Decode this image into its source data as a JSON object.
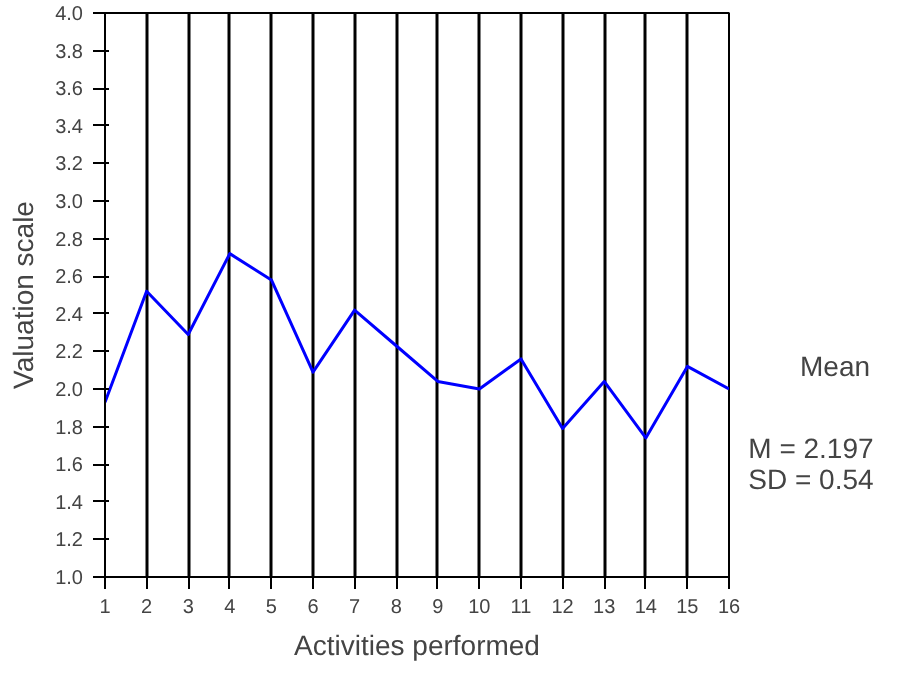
{
  "chart_data": {
    "type": "line",
    "xlabel": "Activities performed",
    "ylabel": "Valuation scale",
    "x": [
      1,
      2,
      3,
      4,
      5,
      6,
      7,
      8,
      9,
      10,
      11,
      12,
      13,
      14,
      15,
      16
    ],
    "series": [
      {
        "name": "Mean",
        "color": "#0000ff",
        "values": [
          1.93,
          2.52,
          2.29,
          2.72,
          2.58,
          2.09,
          2.42,
          2.23,
          2.04,
          2.0,
          2.16,
          1.79,
          2.04,
          1.74,
          2.12,
          2.0
        ]
      }
    ],
    "xlim": [
      1,
      16
    ],
    "xticks": [
      1,
      2,
      3,
      4,
      5,
      6,
      7,
      8,
      9,
      10,
      11,
      12,
      13,
      14,
      15,
      16
    ],
    "ylim": [
      1,
      4
    ],
    "yticks": [
      {
        "value": 1,
        "label": "1.0"
      },
      {
        "value": 1.2,
        "label": "1.2"
      },
      {
        "value": 1.4,
        "label": "1.4"
      },
      {
        "value": 1.6,
        "label": "1.6"
      },
      {
        "value": 1.8,
        "label": "1.8"
      },
      {
        "value": 2,
        "label": "2.0"
      },
      {
        "value": 2.2,
        "label": "2.2"
      },
      {
        "value": 2.4,
        "label": "2.4"
      },
      {
        "value": 2.6,
        "label": "2.6"
      },
      {
        "value": 2.8,
        "label": "2.8"
      },
      {
        "value": 3,
        "label": "3.0"
      },
      {
        "value": 3.2,
        "label": "3.2"
      },
      {
        "value": 3.4,
        "label": "3.4"
      },
      {
        "value": 3.6,
        "label": "3.6"
      },
      {
        "value": 3.8,
        "label": "3.8"
      },
      {
        "value": 4,
        "label": "4.0"
      }
    ],
    "grid": "x",
    "legend": "right",
    "marker": "none",
    "line_style": "solid",
    "annotations": [
      "M = 2.197",
      "SD = 0.54"
    ]
  }
}
